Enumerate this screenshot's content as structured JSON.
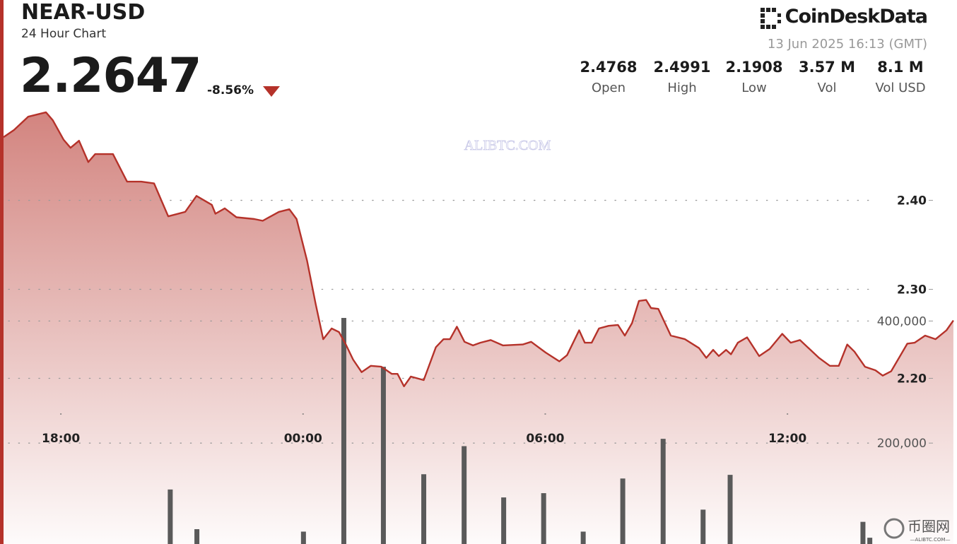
{
  "header": {
    "title": "NEAR-USD",
    "subtitle": "24 Hour Chart",
    "price": "2.2647",
    "change": "-8.56%",
    "brand": "CoinDeskData",
    "timestamp": "13 Jun 2025 16:13 (GMT)",
    "stats": [
      {
        "value": "2.4768",
        "label": "Open"
      },
      {
        "value": "2.4991",
        "label": "High"
      },
      {
        "value": "2.1908",
        "label": "Low"
      },
      {
        "value": "3.57 M",
        "label": "Vol"
      },
      {
        "value": "8.1 M",
        "label": "Vol USD"
      }
    ]
  },
  "watermark": {
    "text": "ALIBTC.COM",
    "logo": "币圈网",
    "logo_sub": "—ALIBTC.COM—"
  },
  "chart_data": {
    "type": "line",
    "grid": true,
    "xlim": [
      16.58,
      40.13
    ],
    "xticks": [
      {
        "value": 18,
        "label": "18:00"
      },
      {
        "value": 24,
        "label": "00:00"
      },
      {
        "value": 30,
        "label": "06:00"
      },
      {
        "value": 36,
        "label": "12:00"
      }
    ],
    "ylim": [
      1.99,
      2.51
    ],
    "yticks": [
      {
        "value": 2.2,
        "label": "2.20"
      },
      {
        "value": 2.3,
        "label": "2.30"
      },
      {
        "value": 2.4,
        "label": "2.40"
      }
    ],
    "y2lim": [
      0,
      758000
    ],
    "y2ticks": [
      {
        "value": 200000,
        "label": "200,000"
      },
      {
        "value": 400000,
        "label": "400,000"
      }
    ],
    "series": [
      {
        "type": "line",
        "color": "#b5322a",
        "x": [
          16.58,
          16.84,
          17.19,
          17.63,
          17.8,
          18.07,
          18.24,
          18.45,
          18.68,
          18.85,
          19.29,
          19.64,
          19.99,
          20.31,
          20.66,
          21.08,
          21.36,
          21.74,
          21.83,
          22.06,
          22.35,
          22.79,
          23.0,
          23.4,
          23.66,
          23.84,
          24.1,
          24.31,
          24.5,
          24.71,
          24.89,
          25.06,
          25.24,
          25.45,
          25.68,
          25.94,
          26.2,
          26.34,
          26.5,
          26.67,
          26.99,
          27.29,
          27.48,
          27.64,
          27.81,
          28.0,
          28.21,
          28.39,
          28.65,
          28.95,
          29.44,
          29.65,
          30.01,
          30.35,
          30.54,
          30.84,
          30.98,
          31.15,
          31.33,
          31.57,
          31.8,
          31.97,
          32.15,
          32.32,
          32.5,
          32.62,
          32.8,
          33.11,
          33.46,
          33.81,
          33.99,
          34.16,
          34.3,
          34.48,
          34.6,
          34.77,
          35.0,
          35.3,
          35.56,
          35.87,
          36.08,
          36.31,
          36.78,
          37.05,
          37.27,
          37.48,
          37.66,
          37.92,
          38.18,
          38.36,
          38.57,
          38.97,
          39.15,
          39.41,
          39.67,
          39.94,
          40.11
        ],
        "values": [
          2.471,
          2.479,
          2.494,
          2.499,
          2.49,
          2.468,
          2.459,
          2.467,
          2.443,
          2.452,
          2.452,
          2.421,
          2.421,
          2.419,
          2.382,
          2.387,
          2.405,
          2.395,
          2.385,
          2.391,
          2.381,
          2.379,
          2.377,
          2.387,
          2.39,
          2.379,
          2.332,
          2.284,
          2.244,
          2.256,
          2.252,
          2.238,
          2.221,
          2.207,
          2.214,
          2.213,
          2.205,
          2.205,
          2.191,
          2.202,
          2.198,
          2.235,
          2.244,
          2.244,
          2.258,
          2.241,
          2.237,
          2.24,
          2.243,
          2.237,
          2.238,
          2.241,
          2.229,
          2.219,
          2.226,
          2.254,
          2.24,
          2.24,
          2.256,
          2.259,
          2.26,
          2.248,
          2.262,
          2.287,
          2.288,
          2.279,
          2.278,
          2.248,
          2.244,
          2.234,
          2.223,
          2.232,
          2.225,
          2.232,
          2.227,
          2.24,
          2.246,
          2.225,
          2.233,
          2.25,
          2.24,
          2.243,
          2.223,
          2.214,
          2.214,
          2.238,
          2.23,
          2.213,
          2.209,
          2.203,
          2.208,
          2.239,
          2.24,
          2.248,
          2.244,
          2.254,
          2.265
        ]
      },
      {
        "type": "bar",
        "axis": "y2",
        "color": "#5a5a5a",
        "x": [
          20.71,
          21.37,
          24.01,
          25.01,
          25.99,
          26.99,
          27.99,
          28.97,
          29.96,
          30.94,
          31.92,
          32.92,
          33.91,
          34.58,
          37.87,
          38.04
        ],
        "values": [
          124000,
          59000,
          55000,
          405000,
          325000,
          149000,
          195000,
          111000,
          118000,
          55000,
          142000,
          207000,
          91000,
          148000,
          71000,
          45000
        ]
      }
    ]
  }
}
